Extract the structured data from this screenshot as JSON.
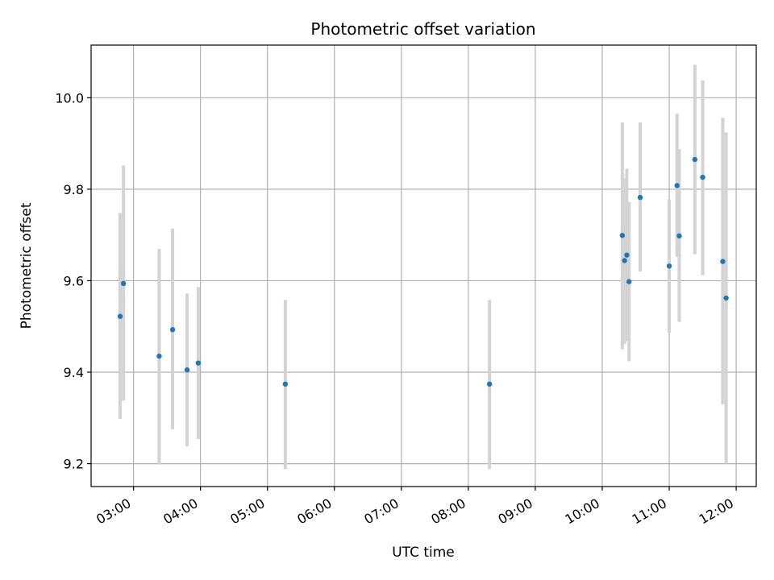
{
  "chart_data": {
    "type": "scatter",
    "title": "Photometric offset variation",
    "xlabel": "UTC time",
    "ylabel": "Photometric offset",
    "grid": true,
    "legend": "none",
    "x_tick_labels": [
      "03:00",
      "04:00",
      "05:00",
      "06:00",
      "07:00",
      "08:00",
      "09:00",
      "10:00",
      "11:00",
      "12:00"
    ],
    "y_tick_labels": [
      "9.2",
      "9.4",
      "9.6",
      "9.8",
      "10.0"
    ],
    "y_ticks": [
      9.2,
      9.4,
      9.6,
      9.8,
      10.0
    ],
    "xlim": [
      "02:22",
      "12:18"
    ],
    "ylim": [
      9.15,
      10.115
    ],
    "colors": {
      "marker": "#1f77b4",
      "errorbar": "#d3d3d3",
      "grid": "#b0b0b0",
      "axis": "#000000"
    },
    "points": [
      {
        "x": "02:48",
        "y": 9.522,
        "ylow": 9.298,
        "yhigh": 9.748
      },
      {
        "x": "02:51",
        "y": 9.594,
        "ylow": 9.338,
        "yhigh": 9.852
      },
      {
        "x": "03:23",
        "y": 9.435,
        "ylow": 9.198,
        "yhigh": 9.67
      },
      {
        "x": "03:35",
        "y": 9.493,
        "ylow": 9.275,
        "yhigh": 9.714
      },
      {
        "x": "03:48",
        "y": 9.405,
        "ylow": 9.238,
        "yhigh": 9.572
      },
      {
        "x": "03:58",
        "y": 9.42,
        "ylow": 9.254,
        "yhigh": 9.586
      },
      {
        "x": "05:16",
        "y": 9.374,
        "ylow": 9.188,
        "yhigh": 9.558
      },
      {
        "x": "08:19",
        "y": 9.374,
        "ylow": 9.188,
        "yhigh": 9.558
      },
      {
        "x": "10:18",
        "y": 9.699,
        "ylow": 9.45,
        "yhigh": 9.946
      },
      {
        "x": "10:20",
        "y": 9.644,
        "ylow": 9.462,
        "yhigh": 9.824
      },
      {
        "x": "10:22",
        "y": 9.656,
        "ylow": 9.468,
        "yhigh": 9.845
      },
      {
        "x": "10:24",
        "y": 9.598,
        "ylow": 9.424,
        "yhigh": 9.772
      },
      {
        "x": "10:34",
        "y": 9.782,
        "ylow": 9.62,
        "yhigh": 9.946
      },
      {
        "x": "11:00",
        "y": 9.632,
        "ylow": 9.486,
        "yhigh": 9.778
      },
      {
        "x": "11:07",
        "y": 9.808,
        "ylow": 9.652,
        "yhigh": 9.965
      },
      {
        "x": "11:09",
        "y": 9.698,
        "ylow": 9.51,
        "yhigh": 9.888
      },
      {
        "x": "11:23",
        "y": 9.865,
        "ylow": 9.658,
        "yhigh": 10.072
      },
      {
        "x": "11:30",
        "y": 9.826,
        "ylow": 9.612,
        "yhigh": 10.038
      },
      {
        "x": "11:48",
        "y": 9.642,
        "ylow": 9.33,
        "yhigh": 9.956
      },
      {
        "x": "11:51",
        "y": 9.562,
        "ylow": 9.2,
        "yhigh": 9.924
      }
    ]
  }
}
